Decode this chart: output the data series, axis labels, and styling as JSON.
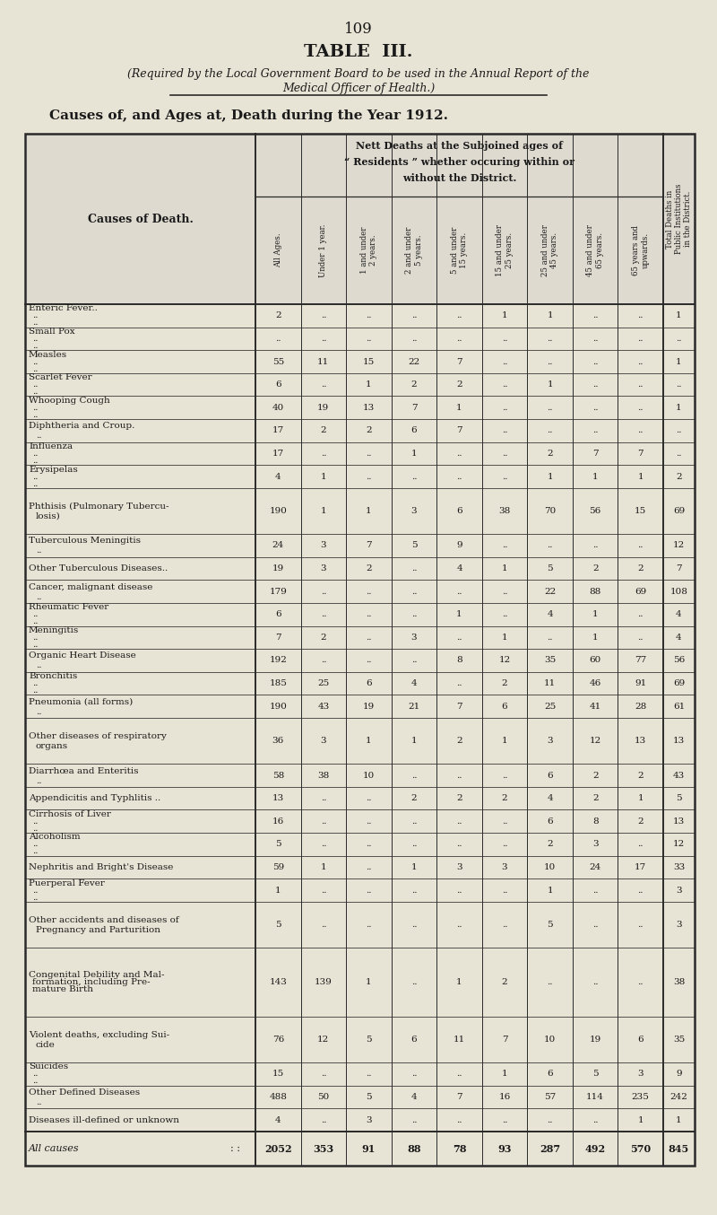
{
  "page_number": "109",
  "title": "TABLE  III.",
  "subtitle1": "(Required by the Local Government Board to be used in the Annual Report of the",
  "subtitle2": "Medical Officer of Health.)",
  "section_title": "Causes of, and Ages at, Death during the Year 1912.",
  "bg_color": "#e8e4d5",
  "text_color": "#1a1a1a",
  "line_color": "#2a2a2a",
  "causes": [
    [
      "Enteric Fever..",
      "..",
      ".."
    ],
    [
      "Small Pox",
      "..",
      "..",
      ".."
    ],
    [
      "Measles",
      "..",
      "..",
      ".."
    ],
    [
      "Scarlet Fever",
      "..",
      ".."
    ],
    [
      "Whooping Cough",
      "..",
      ".."
    ],
    [
      "Diphtheria and Croup.",
      ".."
    ],
    [
      "Influenza",
      "..",
      "..",
      ".."
    ],
    [
      "Erysipelas",
      "..",
      "..",
      ".."
    ],
    [
      "Phthisis (Pulmonary Tubercu-",
      "losis)"
    ],
    [
      "Tuberculous Meningitis",
      ".."
    ],
    [
      "Other Tuberculous Diseases.."
    ],
    [
      "Cancer, malignant disease",
      ".."
    ],
    [
      "Rheumatic Fever",
      "..",
      ".."
    ],
    [
      "Meningitis",
      "..",
      "..",
      ".."
    ],
    [
      "Organic Heart Disease",
      ".."
    ],
    [
      "Bronchitis",
      "..",
      "..",
      ".."
    ],
    [
      "Pneumonia (all forms)",
      ".."
    ],
    [
      "Other diseases of respiratory",
      "organs"
    ],
    [
      "Diarrhœa and Enteritis",
      ".."
    ],
    [
      "Appendicitis and Typhlitis .."
    ],
    [
      "Cirrhosis of Liver",
      "..",
      ".."
    ],
    [
      "Alcoholism",
      "..",
      "..",
      ".."
    ],
    [
      "Nephritis and Bright's Disease"
    ],
    [
      "Puerperal Fever",
      "..",
      ".."
    ],
    [
      "Other accidents and diseases of",
      "Pregnancy and Parturition"
    ],
    [
      "Congenital Debility and Mal-",
      "formation, including Pre-",
      "mature Birth"
    ],
    [
      "Violent deaths, excluding Sui-",
      "cide"
    ],
    [
      "Suicides",
      "..",
      "..",
      "..",
      ".."
    ],
    [
      "Other Defined Diseases",
      ".."
    ],
    [
      "Diseases ill-defined or unknown"
    ],
    [
      "All causes"
    ]
  ],
  "data": [
    [
      2,
      "..",
      "..",
      "..",
      "..",
      1,
      1,
      "..",
      "..",
      1
    ],
    [
      "..",
      "..",
      "..",
      "..",
      "..",
      "..",
      "..",
      "..",
      "..",
      ".."
    ],
    [
      55,
      11,
      15,
      22,
      7,
      "..",
      "..",
      "..",
      "..",
      1
    ],
    [
      6,
      "..",
      1,
      2,
      2,
      "..",
      1,
      "..",
      "..",
      ".."
    ],
    [
      40,
      19,
      13,
      7,
      1,
      "..",
      "..",
      "..",
      "..",
      1
    ],
    [
      17,
      2,
      2,
      6,
      7,
      "..",
      "..",
      "..",
      "..",
      ".."
    ],
    [
      17,
      "..",
      "..",
      1,
      "..",
      "..",
      2,
      7,
      7,
      ".."
    ],
    [
      4,
      1,
      "..",
      "..",
      "..",
      "..",
      1,
      1,
      1,
      2
    ],
    [
      190,
      1,
      1,
      3,
      6,
      38,
      70,
      56,
      15,
      69
    ],
    [
      24,
      3,
      7,
      5,
      9,
      "..",
      "..",
      "..",
      "..",
      12
    ],
    [
      19,
      3,
      2,
      "..",
      4,
      1,
      5,
      2,
      2,
      7
    ],
    [
      179,
      "..",
      "..",
      "..",
      "..",
      "..",
      22,
      88,
      69,
      108
    ],
    [
      6,
      "..",
      "..",
      "..",
      1,
      "..",
      4,
      1,
      "..",
      4
    ],
    [
      7,
      2,
      "..",
      3,
      "..",
      1,
      "..",
      1,
      "..",
      4
    ],
    [
      192,
      "..",
      "..",
      "..",
      8,
      12,
      35,
      60,
      77,
      56
    ],
    [
      185,
      25,
      6,
      4,
      "..",
      2,
      11,
      46,
      91,
      69
    ],
    [
      190,
      43,
      19,
      21,
      7,
      6,
      25,
      41,
      28,
      61
    ],
    [
      36,
      3,
      1,
      1,
      2,
      1,
      3,
      12,
      13,
      13
    ],
    [
      58,
      38,
      10,
      "..",
      "..",
      "..",
      6,
      2,
      2,
      43
    ],
    [
      13,
      "..",
      "..",
      2,
      2,
      2,
      4,
      2,
      1,
      5
    ],
    [
      16,
      "..",
      "..",
      "..",
      "..",
      "..",
      6,
      8,
      2,
      13
    ],
    [
      5,
      "..",
      "..",
      "..",
      "..",
      "..",
      2,
      3,
      "..",
      12
    ],
    [
      59,
      1,
      "..",
      1,
      3,
      3,
      10,
      24,
      17,
      33
    ],
    [
      1,
      "..",
      "..",
      "..",
      "..",
      "..",
      1,
      "..",
      "..",
      3
    ],
    [
      5,
      "..",
      "..",
      "..",
      "..",
      "..",
      5,
      "..",
      "..",
      3
    ],
    [
      143,
      139,
      1,
      "..",
      1,
      2,
      "..",
      "..",
      "..",
      38
    ],
    [
      76,
      12,
      5,
      6,
      11,
      7,
      10,
      19,
      6,
      35
    ],
    [
      15,
      "..",
      "..",
      "..",
      "..",
      1,
      6,
      5,
      3,
      9
    ],
    [
      488,
      50,
      5,
      4,
      7,
      16,
      57,
      114,
      235,
      242
    ],
    [
      4,
      "..",
      3,
      "..",
      "..",
      "..",
      "..",
      "..",
      1,
      1
    ],
    [
      2052,
      353,
      91,
      88,
      78,
      93,
      287,
      492,
      570,
      845
    ]
  ],
  "age_headers": [
    "All Ages.",
    "Under 1 year.",
    "1 and under\n2 years.",
    "2 and under\n5 years.",
    "5 and under\n15 years.",
    "15 and under\n25 years.",
    "25 and under\n45 years.",
    "45 and under\n65 years.",
    "65 years and\nupwards.",
    "Total Deaths in\nPublic Institutions\nin the District."
  ],
  "row_lines": [
    1,
    1,
    1,
    1,
    1,
    1,
    1,
    1,
    2,
    1,
    1,
    1,
    1,
    1,
    1,
    1,
    1,
    2,
    1,
    1,
    1,
    1,
    1,
    1,
    2,
    3,
    2,
    1,
    1,
    1,
    1
  ]
}
